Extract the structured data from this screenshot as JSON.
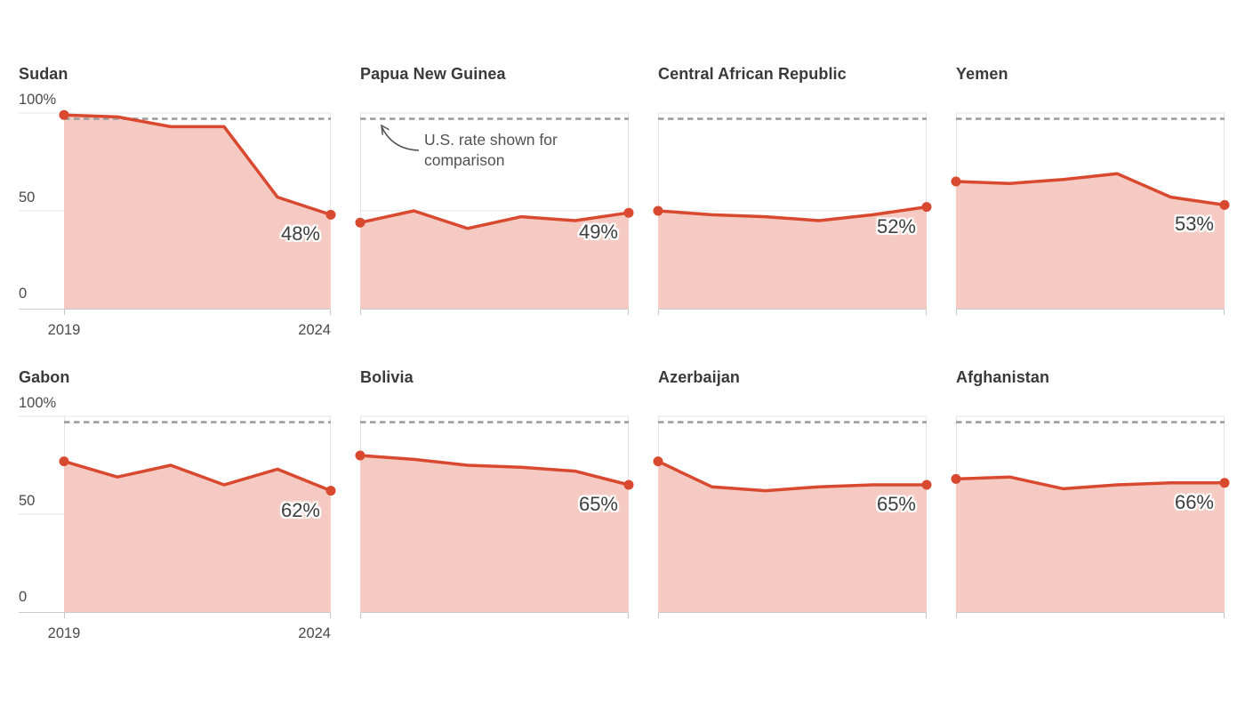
{
  "page": {
    "background": "#ffffff"
  },
  "chart_data": {
    "type": "area",
    "x": [
      "2019",
      "2020",
      "2021",
      "2022",
      "2023",
      "2024"
    ],
    "x_tick_labels": [
      "2019",
      "2024"
    ],
    "ylim": [
      0,
      100
    ],
    "y_ticks": [
      {
        "value": 100,
        "label": "100%"
      },
      {
        "value": 50,
        "label": "50"
      },
      {
        "value": 0,
        "label": "0"
      }
    ],
    "us_reference_rate": 97,
    "annotation": {
      "text": "U.S. rate shown for comparison",
      "attached_to_series": "Papua New Guinea",
      "points_at": "us-reference-line"
    },
    "grid": "horizontal",
    "legend": "none",
    "series": [
      {
        "name": "Sudan",
        "values": [
          99,
          98,
          93,
          93,
          57,
          48
        ],
        "end_label": "48%"
      },
      {
        "name": "Papua New Guinea",
        "values": [
          44,
          50,
          41,
          47,
          45,
          49
        ],
        "end_label": "49%"
      },
      {
        "name": "Central African Republic",
        "values": [
          50,
          48,
          47,
          45,
          48,
          52
        ],
        "end_label": "52%"
      },
      {
        "name": "Yemen",
        "values": [
          65,
          64,
          66,
          69,
          57,
          53
        ],
        "end_label": "53%"
      },
      {
        "name": "Gabon",
        "values": [
          77,
          69,
          75,
          65,
          73,
          62
        ],
        "end_label": "62%"
      },
      {
        "name": "Bolivia",
        "values": [
          80,
          78,
          75,
          74,
          72,
          65
        ],
        "end_label": "65%"
      },
      {
        "name": "Azerbaijan",
        "values": [
          77,
          64,
          62,
          64,
          65,
          65
        ],
        "end_label": "65%"
      },
      {
        "name": "Afghanistan",
        "values": [
          68,
          69,
          63,
          65,
          66,
          66
        ],
        "end_label": "66%"
      }
    ]
  },
  "colors": {
    "line": "#d8492f",
    "area_fill": "#f5cac2",
    "us_reference_line": "#9e9e9e",
    "gridline": "#e4e4e4",
    "axis_line": "#cccccc",
    "tick": "#c4c4c4",
    "title_text": "#3a3a3a",
    "axis_label_text": "#4a4a4a",
    "annotation_text": "#515151",
    "value_label_text": "#3e3e3e"
  }
}
